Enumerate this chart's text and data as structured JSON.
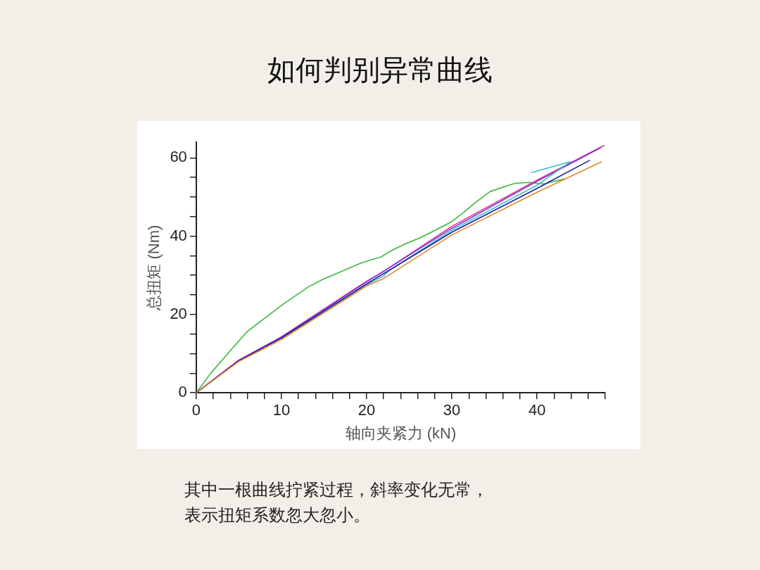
{
  "chart_data": {
    "type": "line",
    "title": "如何判别异常曲线",
    "xlabel": "轴向夹紧力 (kN)",
    "ylabel": "总扭矩 (Nm)",
    "annotations": [
      "其中一根曲线拧紧过程，斜率变化无常，表示扭矩系数忽大忽小。"
    ],
    "xlim": [
      0,
      48
    ],
    "ylim": [
      0,
      64
    ],
    "xticks": [
      0,
      {
        "value": 2,
        "label": null
      },
      {
        "value": 4,
        "label": null
      },
      {
        "value": 6,
        "label": null
      },
      {
        "value": 8,
        "label": null
      },
      10,
      {
        "value": 12,
        "label": null
      },
      {
        "value": 14,
        "label": null
      },
      {
        "value": 16,
        "label": null
      },
      {
        "value": 18,
        "label": null
      },
      20,
      {
        "value": 22,
        "label": null
      },
      {
        "value": 24,
        "label": null
      },
      {
        "value": 26,
        "label": null
      },
      {
        "value": 28,
        "label": null
      },
      30,
      {
        "value": 32,
        "label": null
      },
      {
        "value": 34,
        "label": null
      },
      {
        "value": 36,
        "label": null
      },
      {
        "value": 38,
        "label": null
      },
      40,
      {
        "value": 42,
        "label": null
      },
      {
        "value": 44,
        "label": null
      },
      {
        "value": 46,
        "label": null
      },
      {
        "value": 48,
        "label": null
      }
    ],
    "yticks": [
      0,
      {
        "value": 5,
        "label": null
      },
      {
        "value": 10,
        "label": null
      },
      {
        "value": 15,
        "label": null
      },
      20,
      {
        "value": 25,
        "label": null
      },
      {
        "value": 30,
        "label": null
      },
      {
        "value": 35,
        "label": null
      },
      40,
      {
        "value": 45,
        "label": null
      },
      {
        "value": 50,
        "label": null
      },
      {
        "value": 55,
        "label": null
      },
      60
    ],
    "grid": false,
    "legend": false,
    "marker": "none",
    "line_style": "solid",
    "series": [
      {
        "color": "#e08a2c",
        "x": [
          0,
          5,
          10,
          20,
          22,
          30,
          40,
          47.6
        ],
        "values": [
          0,
          8,
          13.6,
          27.3,
          29.2,
          40.3,
          51.2,
          59
        ]
      },
      {
        "color": "#1f1f9c",
        "x": [
          0,
          5,
          10,
          20,
          30,
          40,
          46.2
        ],
        "values": [
          0,
          8.2,
          14,
          27.8,
          41,
          52.2,
          59.4
        ]
      },
      {
        "color": "#3cc0c8",
        "x": [
          10,
          20,
          22,
          22.6,
          30,
          40,
          43.9,
          39.3
        ],
        "values": [
          13.9,
          27.6,
          29.8,
          31.2,
          41.5,
          53,
          59,
          56.2
        ]
      },
      {
        "color": "#8a2be2",
        "x": [
          0,
          5,
          10,
          20,
          30,
          40,
          47.5
        ],
        "values": [
          0,
          8.3,
          14.2,
          28.3,
          42,
          54,
          62.6
        ]
      },
      {
        "color": "#d63c8c",
        "x": [
          0,
          5,
          10,
          20,
          22,
          30,
          40,
          47.9
        ],
        "values": [
          0,
          8.3,
          14.3,
          28.5,
          31,
          42.5,
          54.3,
          63.2
        ]
      },
      {
        "color": "#3cb83c",
        "x": [
          0,
          1.7,
          3.5,
          6,
          10.3,
          13.2,
          14.9,
          19.4,
          21.7,
          22.8,
          24.5,
          26.5,
          29.9,
          31.4,
          32.8,
          34.5,
          37.4,
          39.1,
          40.8,
          42.2,
          43.3
        ],
        "values": [
          0,
          5,
          9.5,
          15.7,
          22.8,
          27.1,
          29,
          33.2,
          34.7,
          36.2,
          38,
          39.8,
          43.6,
          46.1,
          48.6,
          51.4,
          53.5,
          53.7,
          53.3,
          54.1,
          54.6
        ]
      }
    ]
  }
}
